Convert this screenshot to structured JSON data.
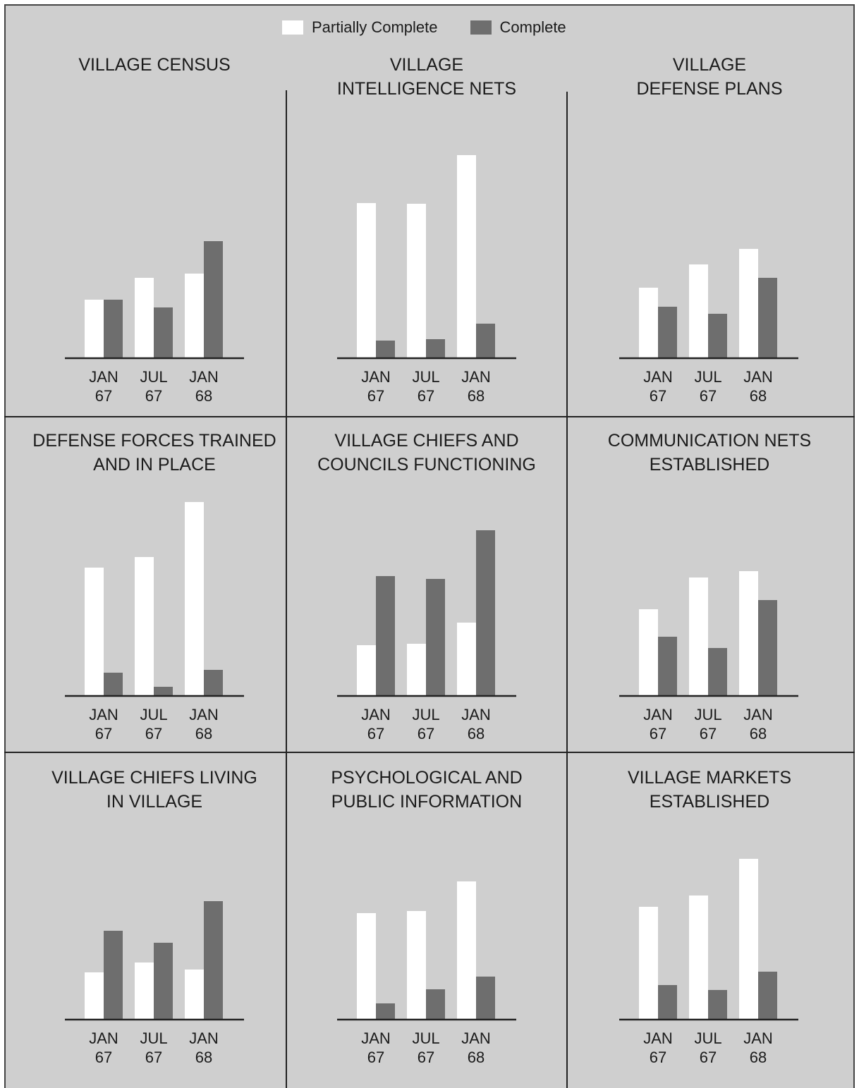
{
  "legend": {
    "partial_label": "Partially Complete",
    "complete_label": "Complete"
  },
  "colors": {
    "background": "#cfcfcf",
    "partial": "#ffffff",
    "complete": "#6e6e6e",
    "axis": "#222222",
    "text": "#1b1b1b"
  },
  "chart_data": [
    {
      "type": "bar",
      "title": [
        "VILLAGE CENSUS"
      ],
      "categories": [
        [
          "JAN",
          "67"
        ],
        [
          "JUL",
          "67"
        ],
        [
          "JAN",
          "68"
        ]
      ],
      "series": [
        {
          "name": "Partially Complete",
          "values": [
            83,
            114,
            120
          ]
        },
        {
          "name": "Complete",
          "values": [
            83,
            72,
            166
          ]
        }
      ],
      "ylim": [
        0,
        300
      ]
    },
    {
      "type": "bar",
      "title": [
        "VILLAGE",
        "INTELLIGENCE NETS"
      ],
      "categories": [
        [
          "JAN",
          "67"
        ],
        [
          "JUL",
          "67"
        ],
        [
          "JAN",
          "68"
        ]
      ],
      "series": [
        {
          "name": "Partially Complete",
          "values": [
            220,
            219,
            288
          ]
        },
        {
          "name": "Complete",
          "values": [
            25,
            27,
            49
          ]
        }
      ],
      "ylim": [
        0,
        300
      ]
    },
    {
      "type": "bar",
      "title": [
        "VILLAGE",
        "DEFENSE PLANS"
      ],
      "categories": [
        [
          "JAN",
          "67"
        ],
        [
          "JUL",
          "67"
        ],
        [
          "JAN",
          "68"
        ]
      ],
      "series": [
        {
          "name": "Partially Complete",
          "values": [
            100,
            133,
            155
          ]
        },
        {
          "name": "Complete",
          "values": [
            73,
            63,
            114
          ]
        }
      ],
      "ylim": [
        0,
        300
      ]
    },
    {
      "type": "bar",
      "title": [
        "DEFENSE FORCES TRAINED",
        "AND IN PLACE"
      ],
      "categories": [
        [
          "JAN",
          "67"
        ],
        [
          "JUL",
          "67"
        ],
        [
          "JAN",
          "68"
        ]
      ],
      "series": [
        {
          "name": "Partially Complete",
          "values": [
            182,
            197,
            275
          ]
        },
        {
          "name": "Complete",
          "values": [
            33,
            13,
            37
          ]
        }
      ],
      "ylim": [
        0,
        300
      ]
    },
    {
      "type": "bar",
      "title": [
        "VILLAGE CHIEFS AND",
        "COUNCILS FUNCTIONING"
      ],
      "categories": [
        [
          "JAN",
          "67"
        ],
        [
          "JUL",
          "67"
        ],
        [
          "JAN",
          "68"
        ]
      ],
      "series": [
        {
          "name": "Partially Complete",
          "values": [
            72,
            74,
            104
          ]
        },
        {
          "name": "Complete",
          "values": [
            170,
            166,
            235
          ]
        }
      ],
      "ylim": [
        0,
        300
      ]
    },
    {
      "type": "bar",
      "title": [
        "COMMUNICATION NETS",
        "ESTABLISHED"
      ],
      "categories": [
        [
          "JAN",
          "67"
        ],
        [
          "JUL",
          "67"
        ],
        [
          "JAN",
          "68"
        ]
      ],
      "series": [
        {
          "name": "Partially Complete",
          "values": [
            123,
            168,
            177
          ]
        },
        {
          "name": "Complete",
          "values": [
            84,
            68,
            136
          ]
        }
      ],
      "ylim": [
        0,
        300
      ]
    },
    {
      "type": "bar",
      "title": [
        "VILLAGE CHIEFS LIVING",
        "IN VILLAGE"
      ],
      "categories": [
        [
          "JAN",
          "67"
        ],
        [
          "JUL",
          "67"
        ],
        [
          "JAN",
          "68"
        ]
      ],
      "series": [
        {
          "name": "Partially Complete",
          "values": [
            67,
            81,
            71
          ]
        },
        {
          "name": "Complete",
          "values": [
            126,
            109,
            168
          ]
        }
      ],
      "ylim": [
        0,
        300
      ]
    },
    {
      "type": "bar",
      "title": [
        "PSYCHOLOGICAL AND",
        "PUBLIC INFORMATION"
      ],
      "categories": [
        [
          "JAN",
          "67"
        ],
        [
          "JUL",
          "67"
        ],
        [
          "JAN",
          "68"
        ]
      ],
      "series": [
        {
          "name": "Partially Complete",
          "values": [
            151,
            154,
            196
          ]
        },
        {
          "name": "Complete",
          "values": [
            23,
            43,
            61
          ]
        }
      ],
      "ylim": [
        0,
        300
      ]
    },
    {
      "type": "bar",
      "title": [
        "VILLAGE MARKETS",
        "ESTABLISHED"
      ],
      "categories": [
        [
          "JAN",
          "67"
        ],
        [
          "JUL",
          "67"
        ],
        [
          "JAN",
          "68"
        ]
      ],
      "series": [
        {
          "name": "Partially Complete",
          "values": [
            160,
            176,
            228
          ]
        },
        {
          "name": "Complete",
          "values": [
            49,
            42,
            68
          ]
        }
      ],
      "ylim": [
        0,
        300
      ]
    }
  ]
}
